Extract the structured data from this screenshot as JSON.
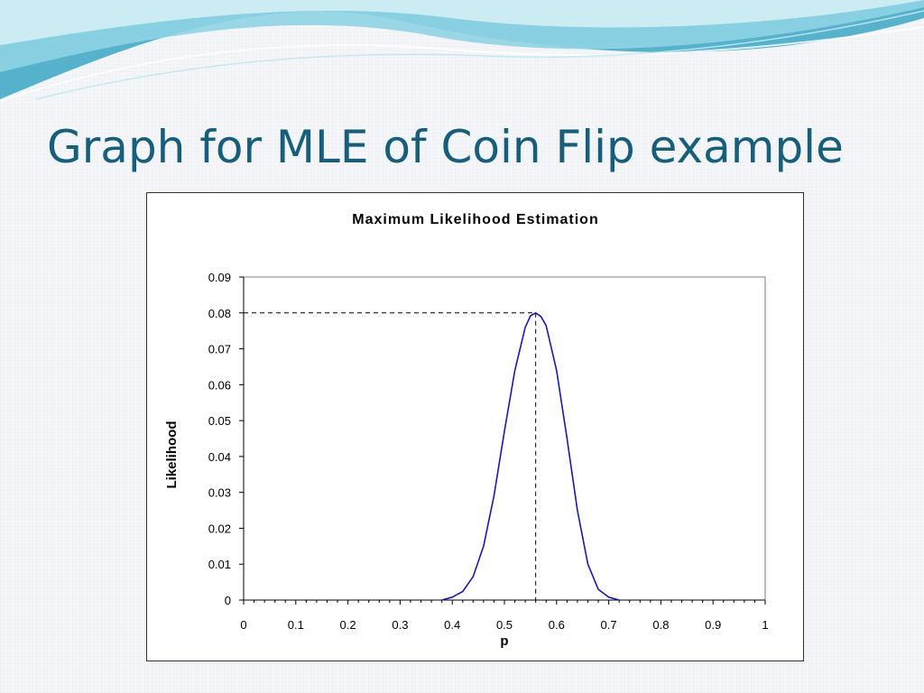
{
  "slide": {
    "title": "Graph for MLE of Coin Flip example"
  },
  "theme": {
    "title_color": "#175e7a",
    "curve_color": "#1a1aa8",
    "wave_colors": [
      "#3ba6c4",
      "#8fd3e4",
      "#d4eef5"
    ]
  },
  "chart_data": {
    "type": "line",
    "title": "Maximum Likelihood Estimation",
    "xlabel": "p",
    "ylabel": "Likelihood",
    "xlim": [
      0,
      1
    ],
    "ylim": [
      0,
      0.09
    ],
    "x_ticks": [
      "0",
      "0.1",
      "0.2",
      "0.3",
      "0.4",
      "0.5",
      "0.6",
      "0.7",
      "0.8",
      "0.9",
      "1"
    ],
    "y_ticks": [
      "0",
      "0.01",
      "0.02",
      "0.03",
      "0.04",
      "0.05",
      "0.06",
      "0.07",
      "0.08",
      "0.09"
    ],
    "grid": false,
    "legend": false,
    "series": [
      {
        "x": [
          0.38,
          0.4,
          0.42,
          0.44,
          0.46,
          0.48,
          0.5,
          0.52,
          0.54,
          0.55,
          0.56,
          0.57,
          0.58,
          0.6,
          0.62,
          0.64,
          0.66,
          0.68,
          0.7,
          0.72
        ],
        "y": [
          0.0,
          0.0008,
          0.0024,
          0.0065,
          0.015,
          0.029,
          0.047,
          0.064,
          0.076,
          0.0792,
          0.08,
          0.079,
          0.0765,
          0.064,
          0.045,
          0.025,
          0.01,
          0.003,
          0.0008,
          0.0
        ]
      }
    ],
    "max_point": {
      "x": 0.56,
      "y": 0.08
    }
  }
}
